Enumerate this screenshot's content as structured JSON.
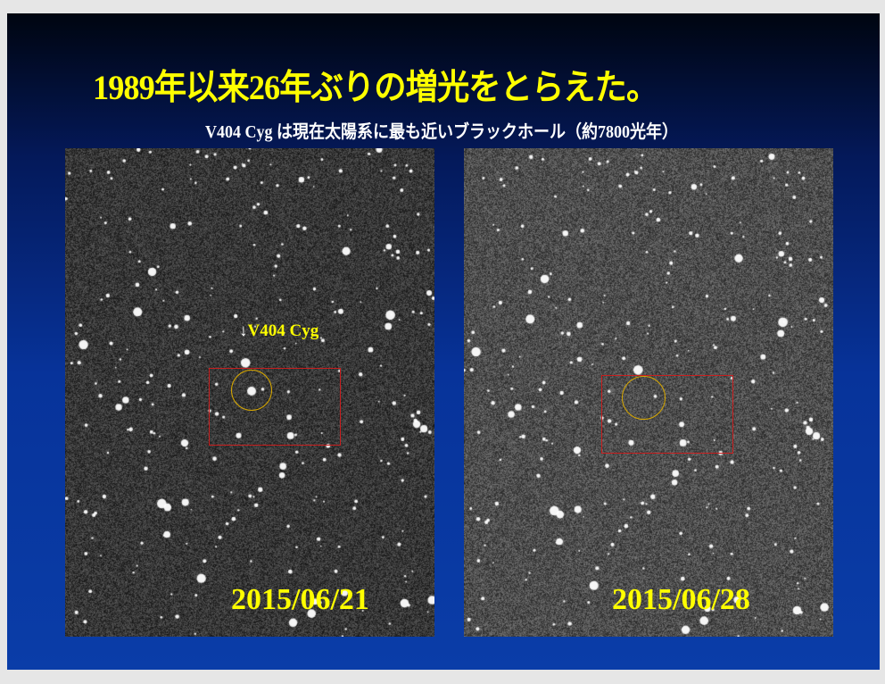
{
  "slide": {
    "title": "1989年以来26年ぶりの増光をとらえた。",
    "subtitle": "V404 Cyg は現在太陽系に最も近いブラックホール（約7800光年）"
  },
  "images": [
    {
      "date": "2015/06/21",
      "target_label": "V404 Cyg",
      "arrow": "↓"
    },
    {
      "date": "2015/06/28"
    }
  ],
  "colors": {
    "title": "#ffff00",
    "box": "#c81e1e",
    "circle": "#d8a800"
  }
}
